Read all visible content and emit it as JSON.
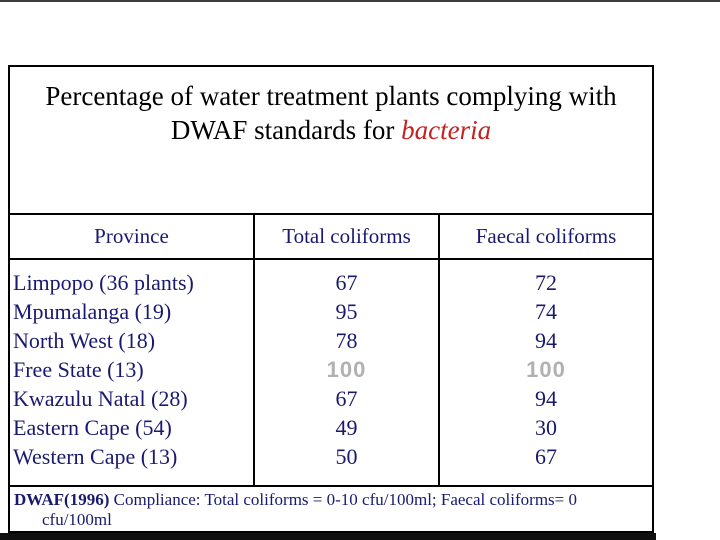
{
  "colors": {
    "title_text": "#000000",
    "accent_red": "#c32222",
    "table_text": "#191970",
    "muted_value": "#b1b1b1",
    "border": "#000000",
    "bottom_bar": "#0f0f0f",
    "top_strip": "#3c3c3c"
  },
  "slide": {
    "title": {
      "line1": "Percentage of water treatment plants complying with",
      "line2_prefix": "DWAF standards for ",
      "line2_emphasis": "bacteria"
    },
    "table": {
      "headers": [
        "Province",
        "Total coliforms",
        "Faecal coliforms"
      ],
      "rows": [
        {
          "province": "Limpopo (36 plants)",
          "total": "67",
          "faecal": "72",
          "muted": false
        },
        {
          "province": "Mpumalanga (19)",
          "total": "95",
          "faecal": "74",
          "muted": false
        },
        {
          "province": "North West (18)",
          "total": "78",
          "faecal": "94",
          "muted": false
        },
        {
          "province": "Free State (13)",
          "total": "100",
          "faecal": "100",
          "muted": true
        },
        {
          "province": "Kwazulu Natal (28)",
          "total": "67",
          "faecal": "94",
          "muted": false
        },
        {
          "province": "Eastern Cape (54)",
          "total": "49",
          "faecal": "30",
          "muted": false
        },
        {
          "province": "Western Cape (13)",
          "total": "50",
          "faecal": "67",
          "muted": false
        }
      ]
    },
    "footnote": {
      "bold_prefix": "DWAF(1996)",
      "line1_rest": " Compliance: Total coliforms = 0-10 cfu/100ml; Faecal coliforms= 0",
      "line2": "cfu/100ml"
    }
  },
  "chart_data": {
    "type": "table",
    "title": "Percentage of water treatment plants complying with DWAF standards for bacteria",
    "columns": [
      "Province",
      "Total coliforms",
      "Faecal coliforms"
    ],
    "rows": [
      [
        "Limpopo (36 plants)",
        67,
        72
      ],
      [
        "Mpumalanga (19)",
        95,
        74
      ],
      [
        "North West (18)",
        78,
        94
      ],
      [
        "Free State (13)",
        100,
        100
      ],
      [
        "Kwazulu Natal (28)",
        67,
        94
      ],
      [
        "Eastern Cape (54)",
        49,
        30
      ],
      [
        "Western Cape (13)",
        50,
        67
      ]
    ],
    "footnote": "DWAF(1996) Compliance: Total coliforms = 0-10 cfu/100ml; Faecal coliforms= 0 cfu/100ml"
  }
}
